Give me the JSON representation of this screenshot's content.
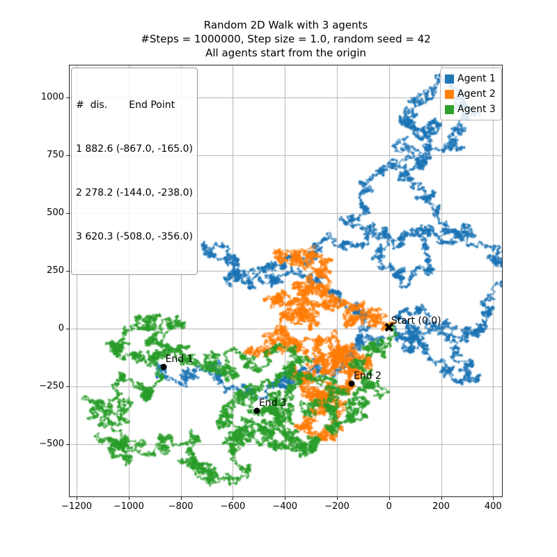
{
  "figure": {
    "title_line1": "Random 2D Walk with 3 agents",
    "title_line2": "#Steps = 1000000, Step size = 1.0, random seed = 42",
    "title_line3": "All agents start from the origin"
  },
  "chart_data": {
    "type": "scatter",
    "title": "Random 2D Walk with 3 agents",
    "subtitle": "#Steps = 1000000, Step size = 1.0, random seed = 42",
    "subtitle2": "All agents start from the origin",
    "params": {
      "steps": 1000000,
      "step_size": 1.0,
      "random_seed": 42,
      "n_agents": 3
    },
    "grid": true,
    "grid_color": "#b0b0b0",
    "xlim": [
      -1227,
      434
    ],
    "ylim": [
      -726,
      1139
    ],
    "x_ticks": [
      -1200,
      -1000,
      -800,
      -600,
      -400,
      -200,
      0,
      200,
      400
    ],
    "x_tick_labels": [
      "−1200",
      "−1000",
      "−800",
      "−600",
      "−400",
      "−200",
      "0",
      "200",
      "400"
    ],
    "y_ticks": [
      1000,
      750,
      500,
      250,
      0,
      -250,
      -500
    ],
    "y_tick_labels": [
      "1000",
      "750",
      "500",
      "250",
      "0",
      "−250",
      "−500"
    ],
    "legend": {
      "position": "upper right",
      "entries": [
        {
          "label": "Agent 1",
          "color": "#1f77b4"
        },
        {
          "label": "Agent 2",
          "color": "#ff7f0e"
        },
        {
          "label": "Agent 3",
          "color": "#2ca02c"
        }
      ]
    },
    "stats_box": {
      "header": "#  dis.       End Point",
      "rows": [
        "1 882.6 (-867.0, -165.0)",
        "2 278.2 (-144.0, -238.0)",
        "3 620.3 (-508.0, -356.0)"
      ]
    },
    "annotations": [
      {
        "label": "Start (0,0)",
        "x": 0,
        "y": 0,
        "marker": "X"
      },
      {
        "label": "End 1",
        "x": -867,
        "y": -165,
        "marker": "dot"
      },
      {
        "label": "End 2",
        "x": -144,
        "y": -238,
        "marker": "dot"
      },
      {
        "label": "End 3",
        "x": -508,
        "y": -356,
        "marker": "dot"
      }
    ],
    "agents": [
      {
        "name": "Agent 1",
        "color": "#1f77b4",
        "distance": 882.6,
        "end_point": [
          -867.0,
          -165.0
        ],
        "trajectory_waypoints": [
          [
            0,
            0
          ],
          [
            80,
            -60
          ],
          [
            230,
            -180
          ],
          [
            330,
            -230
          ],
          [
            250,
            -120
          ],
          [
            120,
            -60
          ],
          [
            40,
            40
          ],
          [
            150,
            60
          ],
          [
            300,
            -40
          ],
          [
            380,
            60
          ],
          [
            430,
            200
          ],
          [
            400,
            350
          ],
          [
            280,
            420
          ],
          [
            160,
            430
          ],
          [
            60,
            390
          ],
          [
            -40,
            300
          ],
          [
            40,
            230
          ],
          [
            160,
            260
          ],
          [
            240,
            420
          ],
          [
            160,
            560
          ],
          [
            60,
            640
          ],
          [
            140,
            720
          ],
          [
            240,
            820
          ],
          [
            300,
            950
          ],
          [
            240,
            1060
          ],
          [
            120,
            980
          ],
          [
            40,
            900
          ],
          [
            120,
            820
          ],
          [
            200,
            880
          ],
          [
            140,
            760
          ],
          [
            0,
            700
          ],
          [
            -80,
            600
          ],
          [
            -160,
            480
          ],
          [
            -60,
            420
          ],
          [
            -180,
            360
          ],
          [
            -320,
            280
          ],
          [
            -480,
            260
          ],
          [
            -620,
            320
          ],
          [
            -700,
            330
          ],
          [
            -600,
            240
          ],
          [
            -440,
            210
          ],
          [
            -300,
            230
          ],
          [
            -200,
            160
          ],
          [
            -100,
            60
          ],
          [
            -40,
            -40
          ],
          [
            -140,
            -100
          ],
          [
            -280,
            -160
          ],
          [
            -420,
            -220
          ],
          [
            -520,
            -300
          ],
          [
            -600,
            -250
          ],
          [
            -700,
            -180
          ],
          [
            -800,
            -240
          ],
          [
            -867,
            -165
          ]
        ]
      },
      {
        "name": "Agent 2",
        "color": "#ff7f0e",
        "distance": 278.2,
        "end_point": [
          -144.0,
          -238.0
        ],
        "trajectory_waypoints": [
          [
            0,
            0
          ],
          [
            -60,
            60
          ],
          [
            -140,
            40
          ],
          [
            -200,
            120
          ],
          [
            -300,
            180
          ],
          [
            -360,
            300
          ],
          [
            -300,
            320
          ],
          [
            -260,
            240
          ],
          [
            -340,
            200
          ],
          [
            -420,
            150
          ],
          [
            -360,
            80
          ],
          [
            -280,
            100
          ],
          [
            -340,
            20
          ],
          [
            -440,
            -20
          ],
          [
            -480,
            -100
          ],
          [
            -400,
            -60
          ],
          [
            -320,
            -100
          ],
          [
            -240,
            -40
          ],
          [
            -180,
            -120
          ],
          [
            -260,
            -180
          ],
          [
            -360,
            -220
          ],
          [
            -300,
            -300
          ],
          [
            -220,
            -260
          ],
          [
            -280,
            -360
          ],
          [
            -240,
            -460
          ],
          [
            -200,
            -380
          ],
          [
            -260,
            -300
          ],
          [
            -160,
            -280
          ],
          [
            -120,
            -200
          ],
          [
            -100,
            -120
          ],
          [
            -160,
            -80
          ],
          [
            -200,
            -160
          ],
          [
            -144,
            -238
          ]
        ]
      },
      {
        "name": "Agent 3",
        "color": "#2ca02c",
        "distance": 620.3,
        "end_point": [
          -508.0,
          -356.0
        ],
        "trajectory_waypoints": [
          [
            0,
            0
          ],
          [
            -40,
            -80
          ],
          [
            -120,
            -140
          ],
          [
            -80,
            -240
          ],
          [
            -160,
            -320
          ],
          [
            -100,
            -380
          ],
          [
            -200,
            -420
          ],
          [
            -300,
            -360
          ],
          [
            -240,
            -260
          ],
          [
            -340,
            -220
          ],
          [
            -440,
            -280
          ],
          [
            -380,
            -380
          ],
          [
            -480,
            -440
          ],
          [
            -600,
            -500
          ],
          [
            -560,
            -600
          ],
          [
            -680,
            -640
          ],
          [
            -800,
            -580
          ],
          [
            -760,
            -480
          ],
          [
            -880,
            -520
          ],
          [
            -1000,
            -560
          ],
          [
            -1100,
            -480
          ],
          [
            -1020,
            -400
          ],
          [
            -1120,
            -340
          ],
          [
            -1050,
            -240
          ],
          [
            -950,
            -280
          ],
          [
            -880,
            -200
          ],
          [
            -960,
            -120
          ],
          [
            -1050,
            -80
          ],
          [
            -980,
            0
          ],
          [
            -880,
            60
          ],
          [
            -800,
            20
          ],
          [
            -860,
            -80
          ],
          [
            -780,
            -140
          ],
          [
            -680,
            -100
          ],
          [
            -600,
            -180
          ],
          [
            -520,
            -120
          ],
          [
            -440,
            -80
          ],
          [
            -380,
            -160
          ],
          [
            -460,
            -240
          ],
          [
            -560,
            -300
          ],
          [
            -640,
            -380
          ],
          [
            -560,
            -460
          ],
          [
            -460,
            -500
          ],
          [
            -360,
            -440
          ],
          [
            -300,
            -520
          ],
          [
            -420,
            -400
          ],
          [
            -508,
            -356
          ]
        ]
      }
    ]
  }
}
